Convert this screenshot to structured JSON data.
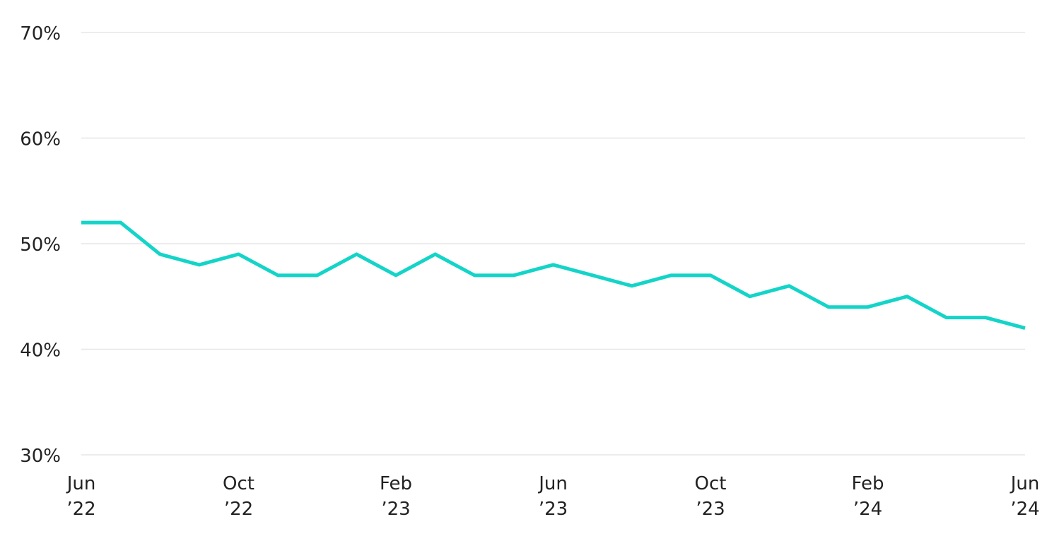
{
  "chart_data": {
    "type": "line",
    "title": "",
    "xlabel": "",
    "ylabel": "",
    "x": [
      "2022-06",
      "2022-07",
      "2022-08",
      "2022-09",
      "2022-10",
      "2022-11",
      "2022-12",
      "2023-01",
      "2023-02",
      "2023-03",
      "2023-04",
      "2023-05",
      "2023-06",
      "2023-07",
      "2023-08",
      "2023-09",
      "2023-10",
      "2023-11",
      "2023-12",
      "2024-01",
      "2024-02",
      "2024-03",
      "2024-04",
      "2024-05",
      "2024-06"
    ],
    "series": [
      {
        "color": "#14d4c8",
        "values": [
          52,
          52,
          49,
          48,
          49,
          47,
          47,
          49,
          47,
          49,
          47,
          47,
          48,
          47,
          46,
          47,
          47,
          45,
          46,
          44,
          44,
          45,
          43,
          43,
          42
        ]
      }
    ],
    "ylim": [
      30,
      70
    ],
    "y_unit": "%",
    "grid": true,
    "y_ticks": [
      {
        "value": 70,
        "label": "70%"
      },
      {
        "value": 60,
        "label": "60%"
      },
      {
        "value": 50,
        "label": "50%"
      },
      {
        "value": 40,
        "label": "40%"
      },
      {
        "value": 30,
        "label": "30%"
      }
    ],
    "x_ticks": [
      {
        "x": "2022-06",
        "line1": "Jun",
        "line2": "’22"
      },
      {
        "x": "2022-10",
        "line1": "Oct",
        "line2": "’22"
      },
      {
        "x": "2023-02",
        "line1": "Feb",
        "line2": "’23"
      },
      {
        "x": "2023-06",
        "line1": "Jun",
        "line2": "’23"
      },
      {
        "x": "2023-10",
        "line1": "Oct",
        "line2": "’23"
      },
      {
        "x": "2024-02",
        "line1": "Feb",
        "line2": "’24"
      },
      {
        "x": "2024-06",
        "line1": "Jun",
        "line2": "’24"
      }
    ]
  }
}
